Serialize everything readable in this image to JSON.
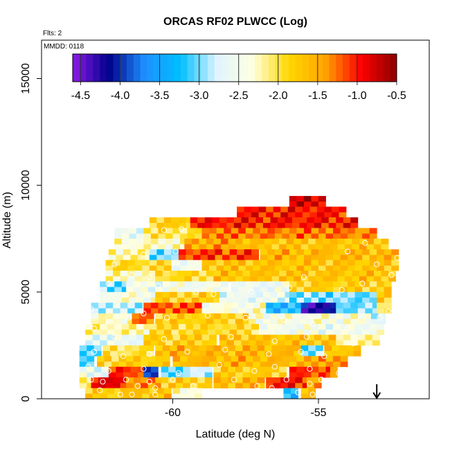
{
  "chart_data": {
    "type": "heatmap",
    "title": "ORCAS RF02 PLWCC (Log)",
    "flights_label": "Flts: 2",
    "date_label": "MMDD: 0118",
    "xlabel": "Latitude (deg N)",
    "ylabel": "Altitude (m)",
    "xlim": [
      -64.5,
      -51.2
    ],
    "ylim": [
      0,
      16800
    ],
    "x_ticks": [
      -60,
      -55
    ],
    "y_ticks": [
      0,
      5000,
      10000,
      15000
    ],
    "colorbar": {
      "range": [
        -4.6,
        -0.5
      ],
      "ticks": [
        -4.5,
        -4.0,
        -3.5,
        -3.0,
        -2.5,
        -2.0,
        -1.5,
        -1.0,
        -0.5
      ],
      "tick_labels": [
        "-4.5",
        "-4.0",
        "-3.5",
        "-3.0",
        "-2.5",
        "-2.0",
        "-1.5",
        "-1.0",
        "-0.5"
      ],
      "colors": [
        "#8b1ae8",
        "#00008b",
        "#1e90ff",
        "#00bfff",
        "#e0f4ff",
        "#ffffe0",
        "#ffd700",
        "#ffa500",
        "#ff0000",
        "#8b0000"
      ]
    },
    "arrow_latitude": -53.0,
    "grid_cell": {
      "lat": 0.25,
      "alt": 250
    },
    "cells_by_altitude": [
      {
        "alt": 9000,
        "segments": [
          [
            -56.0,
            -54.7,
            -0.8
          ]
        ]
      },
      {
        "alt": 8500,
        "segments": [
          [
            -57.8,
            -54.0,
            -1.0
          ]
        ]
      },
      {
        "alt": 8000,
        "segments": [
          [
            -60.8,
            -59.4,
            -1.8
          ],
          [
            -59.4,
            -53.6,
            -1.0
          ]
        ]
      },
      {
        "alt": 7500,
        "segments": [
          [
            -62.0,
            -61.0,
            -2.6
          ],
          [
            -61.0,
            -59.0,
            -2.0
          ],
          [
            -59.0,
            -53.0,
            -1.3
          ]
        ]
      },
      {
        "alt": 7000,
        "segments": [
          [
            -62.0,
            -59.6,
            -2.3
          ],
          [
            -59.6,
            -57.6,
            -1.5
          ],
          [
            -57.6,
            -52.6,
            -1.7
          ]
        ]
      },
      {
        "alt": 6500,
        "segments": [
          [
            -62.2,
            -60.8,
            -2.2
          ],
          [
            -60.8,
            -59.8,
            -3.0
          ],
          [
            -59.8,
            -57.0,
            -1.1
          ],
          [
            -57.0,
            -52.2,
            -1.6
          ]
        ]
      },
      {
        "alt": 6000,
        "segments": [
          [
            -62.3,
            -60.0,
            -1.9
          ],
          [
            -60.0,
            -59.0,
            -2.5
          ],
          [
            -59.0,
            -52.2,
            -1.7
          ]
        ]
      },
      {
        "alt": 5500,
        "segments": [
          [
            -62.3,
            -60.6,
            -2.3
          ],
          [
            -60.6,
            -58.6,
            -1.9
          ],
          [
            -58.6,
            -52.4,
            -1.7
          ]
        ]
      },
      {
        "alt": 5000,
        "segments": [
          [
            -62.5,
            -61.6,
            -3.0
          ],
          [
            -61.6,
            -58.0,
            -2.5
          ],
          [
            -58.0,
            -56.0,
            -2.6
          ],
          [
            -56.0,
            -52.6,
            -1.8
          ]
        ]
      },
      {
        "alt": 4500,
        "segments": [
          [
            -62.5,
            -60.6,
            -2.4
          ],
          [
            -60.6,
            -58.4,
            -1.8
          ],
          [
            -58.4,
            -56.0,
            -2.6
          ],
          [
            -56.0,
            -53.0,
            -3.0
          ],
          [
            -53.0,
            -52.6,
            -1.8
          ]
        ]
      },
      {
        "alt": 4000,
        "segments": [
          [
            -62.8,
            -61.0,
            -2.8
          ],
          [
            -61.0,
            -59.0,
            -1.2
          ],
          [
            -59.0,
            -56.8,
            -2.4
          ],
          [
            -56.8,
            -55.6,
            -3.3
          ],
          [
            -55.6,
            -54.4,
            -4.2
          ],
          [
            -54.4,
            -53.0,
            -3.0
          ],
          [
            -53.0,
            -52.6,
            -2.0
          ]
        ]
      },
      {
        "alt": 3500,
        "segments": [
          [
            -62.8,
            -61.4,
            -2.3
          ],
          [
            -61.4,
            -60.6,
            -1.3
          ],
          [
            -60.6,
            -57.4,
            -1.8
          ],
          [
            -57.4,
            -53.2,
            -2.4
          ],
          [
            -53.2,
            -52.6,
            -2.7
          ]
        ]
      },
      {
        "alt": 3000,
        "segments": [
          [
            -63.0,
            -60.8,
            -2.2
          ],
          [
            -60.8,
            -57.0,
            -1.9
          ],
          [
            -57.0,
            -52.8,
            -2.5
          ]
        ]
      },
      {
        "alt": 2500,
        "segments": [
          [
            -63.0,
            -61.0,
            -2.6
          ],
          [
            -61.0,
            -58.4,
            -1.8
          ],
          [
            -58.4,
            -54.4,
            -1.7
          ],
          [
            -54.4,
            -52.8,
            -2.2
          ]
        ]
      },
      {
        "alt": 2000,
        "segments": [
          [
            -63.2,
            -62.4,
            -3.0
          ],
          [
            -62.4,
            -60.6,
            -2.0
          ],
          [
            -60.6,
            -55.6,
            -1.6
          ],
          [
            -55.6,
            -54.8,
            -3.0
          ],
          [
            -54.8,
            -53.6,
            -1.7
          ]
        ]
      },
      {
        "alt": 1500,
        "segments": [
          [
            -63.2,
            -62.6,
            -3.1
          ],
          [
            -62.6,
            -60.0,
            -1.8
          ],
          [
            -60.0,
            -55.0,
            -1.6
          ],
          [
            -55.0,
            -54.0,
            -1.4
          ]
        ]
      },
      {
        "alt": 1000,
        "segments": [
          [
            -63.2,
            -62.2,
            -2.6
          ],
          [
            -62.2,
            -61.0,
            -1.1
          ],
          [
            -61.0,
            -60.4,
            -4.0
          ],
          [
            -60.4,
            -59.4,
            -3.0
          ],
          [
            -59.4,
            -58.6,
            -2.8
          ],
          [
            -58.6,
            -56.0,
            -1.8
          ],
          [
            -56.0,
            -54.6,
            -1.1
          ],
          [
            -54.6,
            -54.4,
            -1.6
          ]
        ]
      },
      {
        "alt": 500,
        "segments": [
          [
            -63.2,
            -62.8,
            -2.0
          ],
          [
            -62.8,
            -61.6,
            -0.9
          ],
          [
            -61.6,
            -60.4,
            -1.4
          ],
          [
            -60.4,
            -58.6,
            -1.8
          ],
          [
            -58.6,
            -56.8,
            -1.6
          ],
          [
            -56.8,
            -55.4,
            -1.0
          ],
          [
            -55.4,
            -54.8,
            -1.5
          ]
        ]
      },
      {
        "alt": 0,
        "segments": [
          [
            -63.0,
            -61.8,
            -1.8
          ],
          [
            -61.8,
            -60.0,
            -1.7
          ],
          [
            -60.0,
            -59.0,
            -2.3
          ],
          [
            -56.2,
            -55.6,
            -3.2
          ],
          [
            -55.6,
            -55.0,
            -1.7
          ]
        ]
      }
    ],
    "marker_points": [
      [
        -62.4,
        7800
      ],
      [
        -60.3,
        7900
      ],
      [
        -59.7,
        7950
      ],
      [
        -59.9,
        6900
      ],
      [
        -61.0,
        6750
      ],
      [
        -62.0,
        6300
      ],
      [
        -61.4,
        5800
      ],
      [
        -60.8,
        5700
      ],
      [
        -62.2,
        5400
      ],
      [
        -60.5,
        5300
      ],
      [
        -59.2,
        5000
      ],
      [
        -58.6,
        4900
      ],
      [
        -57.3,
        5000
      ],
      [
        -56.0,
        5200
      ],
      [
        -54.2,
        5100
      ],
      [
        -53.5,
        5400
      ],
      [
        -53.0,
        6300
      ],
      [
        -52.3,
        6600
      ],
      [
        -52.5,
        5800
      ],
      [
        -53.4,
        7300
      ],
      [
        -54.0,
        6900
      ],
      [
        -55.5,
        5700
      ],
      [
        -62.8,
        4200
      ],
      [
        -61.5,
        3800
      ],
      [
        -61.0,
        4000
      ],
      [
        -60.2,
        3800
      ],
      [
        -58.8,
        3900
      ],
      [
        -57.5,
        3800
      ],
      [
        -56.2,
        3700
      ],
      [
        -55.2,
        3500
      ],
      [
        -54.0,
        3300
      ],
      [
        -52.9,
        3800
      ],
      [
        -52.6,
        4100
      ],
      [
        -62.7,
        3300
      ],
      [
        -62.0,
        2900
      ],
      [
        -60.3,
        2800
      ],
      [
        -58.0,
        2900
      ],
      [
        -56.5,
        2700
      ],
      [
        -55.4,
        2900
      ],
      [
        -53.8,
        2600
      ],
      [
        -52.9,
        2300
      ],
      [
        -62.7,
        2200
      ],
      [
        -61.7,
        2000
      ],
      [
        -60.8,
        2100
      ],
      [
        -59.5,
        2200
      ],
      [
        -58.2,
        2300
      ],
      [
        -56.7,
        2100
      ],
      [
        -55.6,
        2200
      ],
      [
        -54.8,
        2000
      ],
      [
        -62.9,
        1500
      ],
      [
        -62.2,
        1300
      ],
      [
        -61.0,
        1400
      ],
      [
        -59.8,
        1200
      ],
      [
        -58.4,
        1600
      ],
      [
        -57.2,
        1300
      ],
      [
        -56.5,
        1500
      ],
      [
        -55.3,
        1400
      ],
      [
        -54.3,
        1200
      ],
      [
        -62.8,
        900
      ],
      [
        -62.4,
        800
      ],
      [
        -61.6,
        900
      ],
      [
        -61.2,
        600
      ],
      [
        -60.8,
        800
      ],
      [
        -60.6,
        500
      ],
      [
        -60.0,
        900
      ],
      [
        -59.3,
        600
      ],
      [
        -58.9,
        300
      ],
      [
        -57.9,
        900
      ],
      [
        -57.1,
        600
      ],
      [
        -56.6,
        500
      ],
      [
        -56.1,
        900
      ],
      [
        -55.7,
        300
      ],
      [
        -55.3,
        700
      ],
      [
        -54.9,
        900
      ],
      [
        -62.5,
        400
      ],
      [
        -61.8,
        200
      ],
      [
        -61.4,
        200
      ],
      [
        -60.6,
        200
      ],
      [
        -56.4,
        100
      ],
      [
        -55.2,
        200
      ]
    ]
  }
}
